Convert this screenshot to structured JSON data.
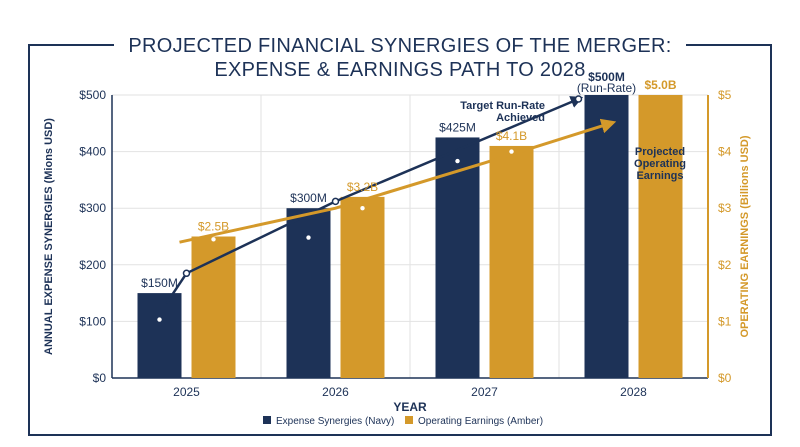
{
  "title_lines": [
    "PROJECTED FINANCIAL SYNERGIES OF THE MERGER:",
    "EXPENSE & EARNINGS PATH TO 2028"
  ],
  "colors": {
    "navy": "#1d3257",
    "amber": "#d4992a",
    "grid": "#e2e2e2"
  },
  "chart_data": {
    "type": "bar",
    "categories": [
      "2025",
      "2026",
      "2027",
      "2028"
    ],
    "xlabel": "YEAR",
    "ylabel_left": "ANNUAL EXPENSE SYNERGIES (Mions USD)",
    "ylabel_right": "OPERATING EARNINGS (Billions USD)",
    "ylim_left": [
      0,
      500
    ],
    "ylim_right": [
      0,
      5
    ],
    "yticks_left": [
      "$0",
      "$100",
      "$200",
      "$300",
      "$400",
      "$500"
    ],
    "yticks_right": [
      "$0",
      "$1",
      "$2",
      "$3",
      "$4",
      "$5"
    ],
    "grid": true,
    "legend_position": "bottom",
    "series": [
      {
        "name": "Expense Synergies (Navy)",
        "axis": "left",
        "values": [
          150,
          300,
          425,
          500
        ],
        "labels": [
          "$150M",
          "$300M",
          "$425M",
          "$500M"
        ],
        "trend_markers": [
          135,
          280,
          415
        ]
      },
      {
        "name": "Operating Earnings (Amber)",
        "axis": "right",
        "values": [
          2.5,
          3.2,
          4.1,
          5.0
        ],
        "labels": [
          "$2.5B",
          "$3.2B",
          "$4.1B",
          "$5.0B"
        ],
        "trend_markers": [
          2.45,
          3.0,
          4.0
        ]
      }
    ],
    "trend_lines": {
      "navy_points": [
        185,
        312,
        500
      ],
      "amber_points": [
        2.4,
        3.0,
        3.8,
        4.5
      ]
    },
    "annotations": {
      "run_rate_sub": "(Run-Rate)",
      "target_lines": [
        "Target Run-Rate",
        "Achieved"
      ],
      "projected_lines": [
        "Projected",
        "Operating",
        "Earnings"
      ]
    }
  }
}
